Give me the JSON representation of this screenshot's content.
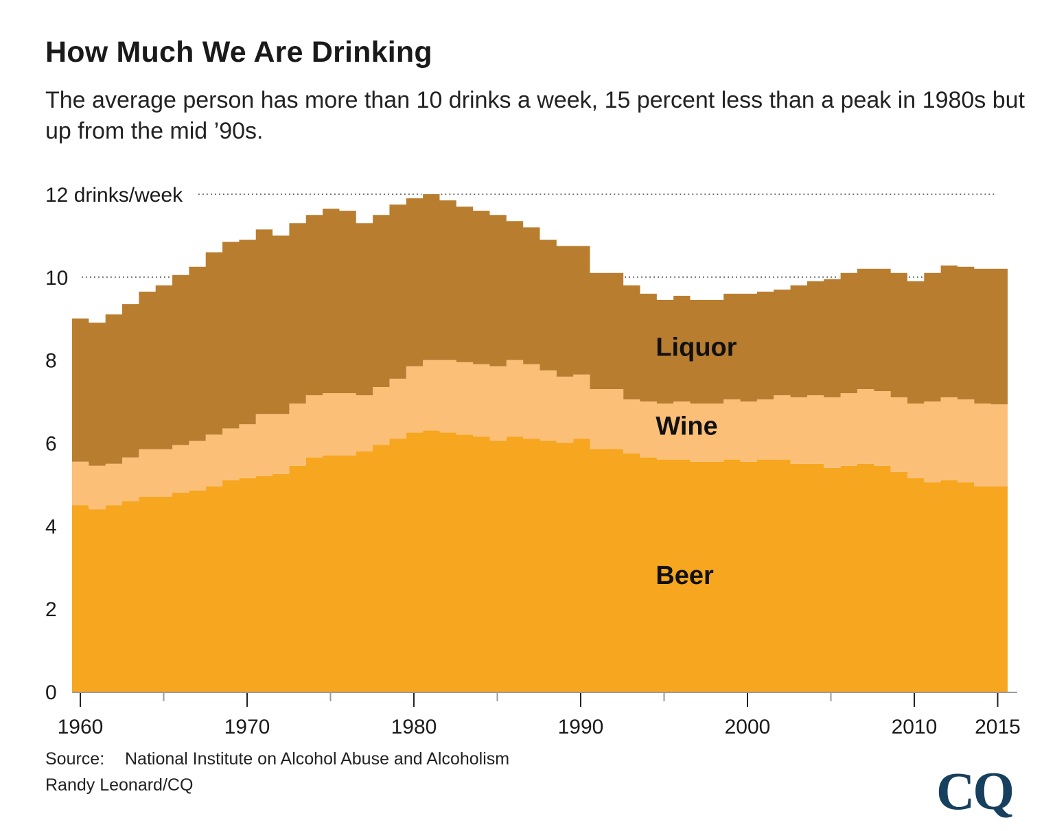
{
  "title": "How Much We Are Drinking",
  "subtitle": "The average person has more than 10 drinks a week, 15 percent less than a peak in 1980s but up from the mid ’90s.",
  "source_label": "Source:",
  "source_text": "National Institute on Alcohol Abuse and Alcoholism",
  "credit": "Randy Leonard/CQ",
  "logo_text": "CQ",
  "chart_data": {
    "type": "area",
    "stacked": true,
    "step": true,
    "x": [
      1960,
      1961,
      1962,
      1963,
      1964,
      1965,
      1966,
      1967,
      1968,
      1969,
      1970,
      1971,
      1972,
      1973,
      1974,
      1975,
      1976,
      1977,
      1978,
      1979,
      1980,
      1981,
      1982,
      1983,
      1984,
      1985,
      1986,
      1987,
      1988,
      1989,
      1990,
      1991,
      1992,
      1993,
      1994,
      1995,
      1996,
      1997,
      1998,
      1999,
      2000,
      2001,
      2002,
      2003,
      2004,
      2005,
      2006,
      2007,
      2008,
      2009,
      2010,
      2011,
      2012,
      2013,
      2014,
      2015
    ],
    "series": [
      {
        "name": "Beer",
        "color": "#f6a61f",
        "values": [
          4.5,
          4.4,
          4.5,
          4.6,
          4.7,
          4.7,
          4.8,
          4.85,
          4.95,
          5.1,
          5.15,
          5.2,
          5.25,
          5.45,
          5.65,
          5.7,
          5.7,
          5.8,
          5.95,
          6.1,
          6.25,
          6.3,
          6.25,
          6.2,
          6.15,
          6.05,
          6.15,
          6.1,
          6.05,
          6.0,
          6.1,
          5.85,
          5.85,
          5.75,
          5.65,
          5.6,
          5.6,
          5.55,
          5.55,
          5.6,
          5.55,
          5.6,
          5.6,
          5.5,
          5.5,
          5.4,
          5.45,
          5.5,
          5.45,
          5.3,
          5.15,
          5.05,
          5.1,
          5.05,
          4.95,
          4.95
        ]
      },
      {
        "name": "Wine",
        "color": "#fbbf78",
        "values": [
          1.05,
          1.05,
          1.0,
          1.05,
          1.15,
          1.15,
          1.15,
          1.2,
          1.25,
          1.25,
          1.3,
          1.5,
          1.45,
          1.5,
          1.5,
          1.5,
          1.5,
          1.35,
          1.4,
          1.45,
          1.6,
          1.7,
          1.75,
          1.75,
          1.75,
          1.8,
          1.85,
          1.8,
          1.7,
          1.6,
          1.55,
          1.45,
          1.45,
          1.3,
          1.35,
          1.35,
          1.4,
          1.4,
          1.4,
          1.45,
          1.45,
          1.45,
          1.55,
          1.6,
          1.65,
          1.7,
          1.75,
          1.8,
          1.8,
          1.8,
          1.8,
          1.95,
          2.0,
          2.0,
          2.0,
          1.98
        ]
      },
      {
        "name": "Liquor",
        "color": "#b87d2e",
        "values": [
          3.45,
          3.45,
          3.6,
          3.7,
          3.8,
          3.95,
          4.1,
          4.2,
          4.4,
          4.5,
          4.45,
          4.45,
          4.3,
          4.35,
          4.35,
          4.45,
          4.4,
          4.15,
          4.15,
          4.2,
          4.05,
          4.0,
          3.85,
          3.75,
          3.7,
          3.65,
          3.35,
          3.3,
          3.15,
          3.15,
          3.1,
          2.8,
          2.8,
          2.75,
          2.6,
          2.5,
          2.55,
          2.5,
          2.5,
          2.55,
          2.6,
          2.6,
          2.55,
          2.7,
          2.75,
          2.85,
          2.9,
          2.9,
          2.95,
          3.0,
          2.95,
          3.1,
          3.18,
          3.2,
          3.25,
          3.27
        ]
      }
    ],
    "y_axis": {
      "min": 0,
      "max": 12,
      "ticks": [
        0,
        2,
        4,
        6,
        8,
        10,
        12
      ],
      "tick_labels": [
        "0",
        "2",
        "4",
        "6",
        "8",
        "10",
        "12 drinks/week"
      ],
      "gridlines": [
        10,
        12
      ]
    },
    "x_axis": {
      "ticks": [
        1960,
        1970,
        1980,
        1990,
        2000,
        2010,
        2015
      ],
      "tick_labels": [
        "1960",
        "1970",
        "1980",
        "1990",
        "2000",
        "2010",
        "2015"
      ],
      "minor_tick_every": 5
    },
    "labels": [
      {
        "text": "Liquor",
        "series": "Liquor",
        "x": 1994.5,
        "y": 8.1
      },
      {
        "text": "Wine",
        "series": "Wine",
        "x": 1994.5,
        "y": 6.2
      },
      {
        "text": "Beer",
        "series": "Beer",
        "x": 1994.5,
        "y": 2.6
      }
    ],
    "legend": "none"
  }
}
